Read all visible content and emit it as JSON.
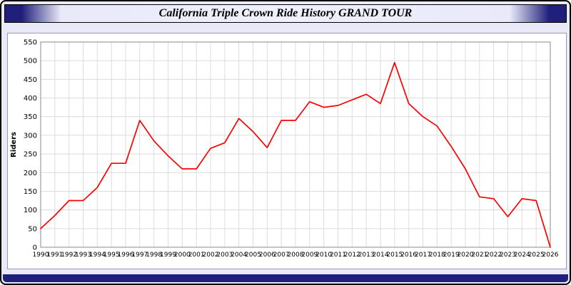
{
  "page": {
    "title": "California Triple Crown Ride History GRAND TOUR",
    "colors": {
      "page_background": "#e9e9f8",
      "navy_accent": "#20207c",
      "plot_background": "#ffffff",
      "line_color": "#ff0000",
      "grid_color": "#dcdcdc",
      "plot_border": "#888888",
      "tick_text": "#000000"
    }
  },
  "chart_data": {
    "type": "line",
    "title": "California Triple Crown Ride History GRAND TOUR",
    "xlabel": "",
    "ylabel": "Riders",
    "ylim": [
      0,
      550
    ],
    "ytick_step": 50,
    "grid": true,
    "legend": "none",
    "line_color": "#ff0000",
    "grid_color": "#dcdcdc",
    "categories": [
      "1990",
      "1991",
      "1992",
      "1993",
      "1994",
      "1995",
      "1996",
      "1997",
      "1998",
      "1999",
      "2000",
      "2001",
      "2002",
      "2003",
      "2004",
      "2005",
      "2006",
      "2007",
      "2008",
      "2009",
      "2010",
      "2011",
      "2012",
      "2013",
      "2014",
      "2015",
      "2016",
      "2017",
      "2018",
      "2019",
      "2020",
      "2021",
      "2022",
      "2023",
      "2024",
      "2025",
      "2026"
    ],
    "values": [
      50,
      85,
      125,
      125,
      160,
      225,
      225,
      340,
      285,
      245,
      210,
      210,
      265,
      280,
      345,
      310,
      267,
      340,
      340,
      390,
      375,
      380,
      395,
      410,
      385,
      495,
      385,
      350,
      325,
      270,
      210,
      135,
      130,
      82,
      130,
      125,
      0
    ]
  }
}
